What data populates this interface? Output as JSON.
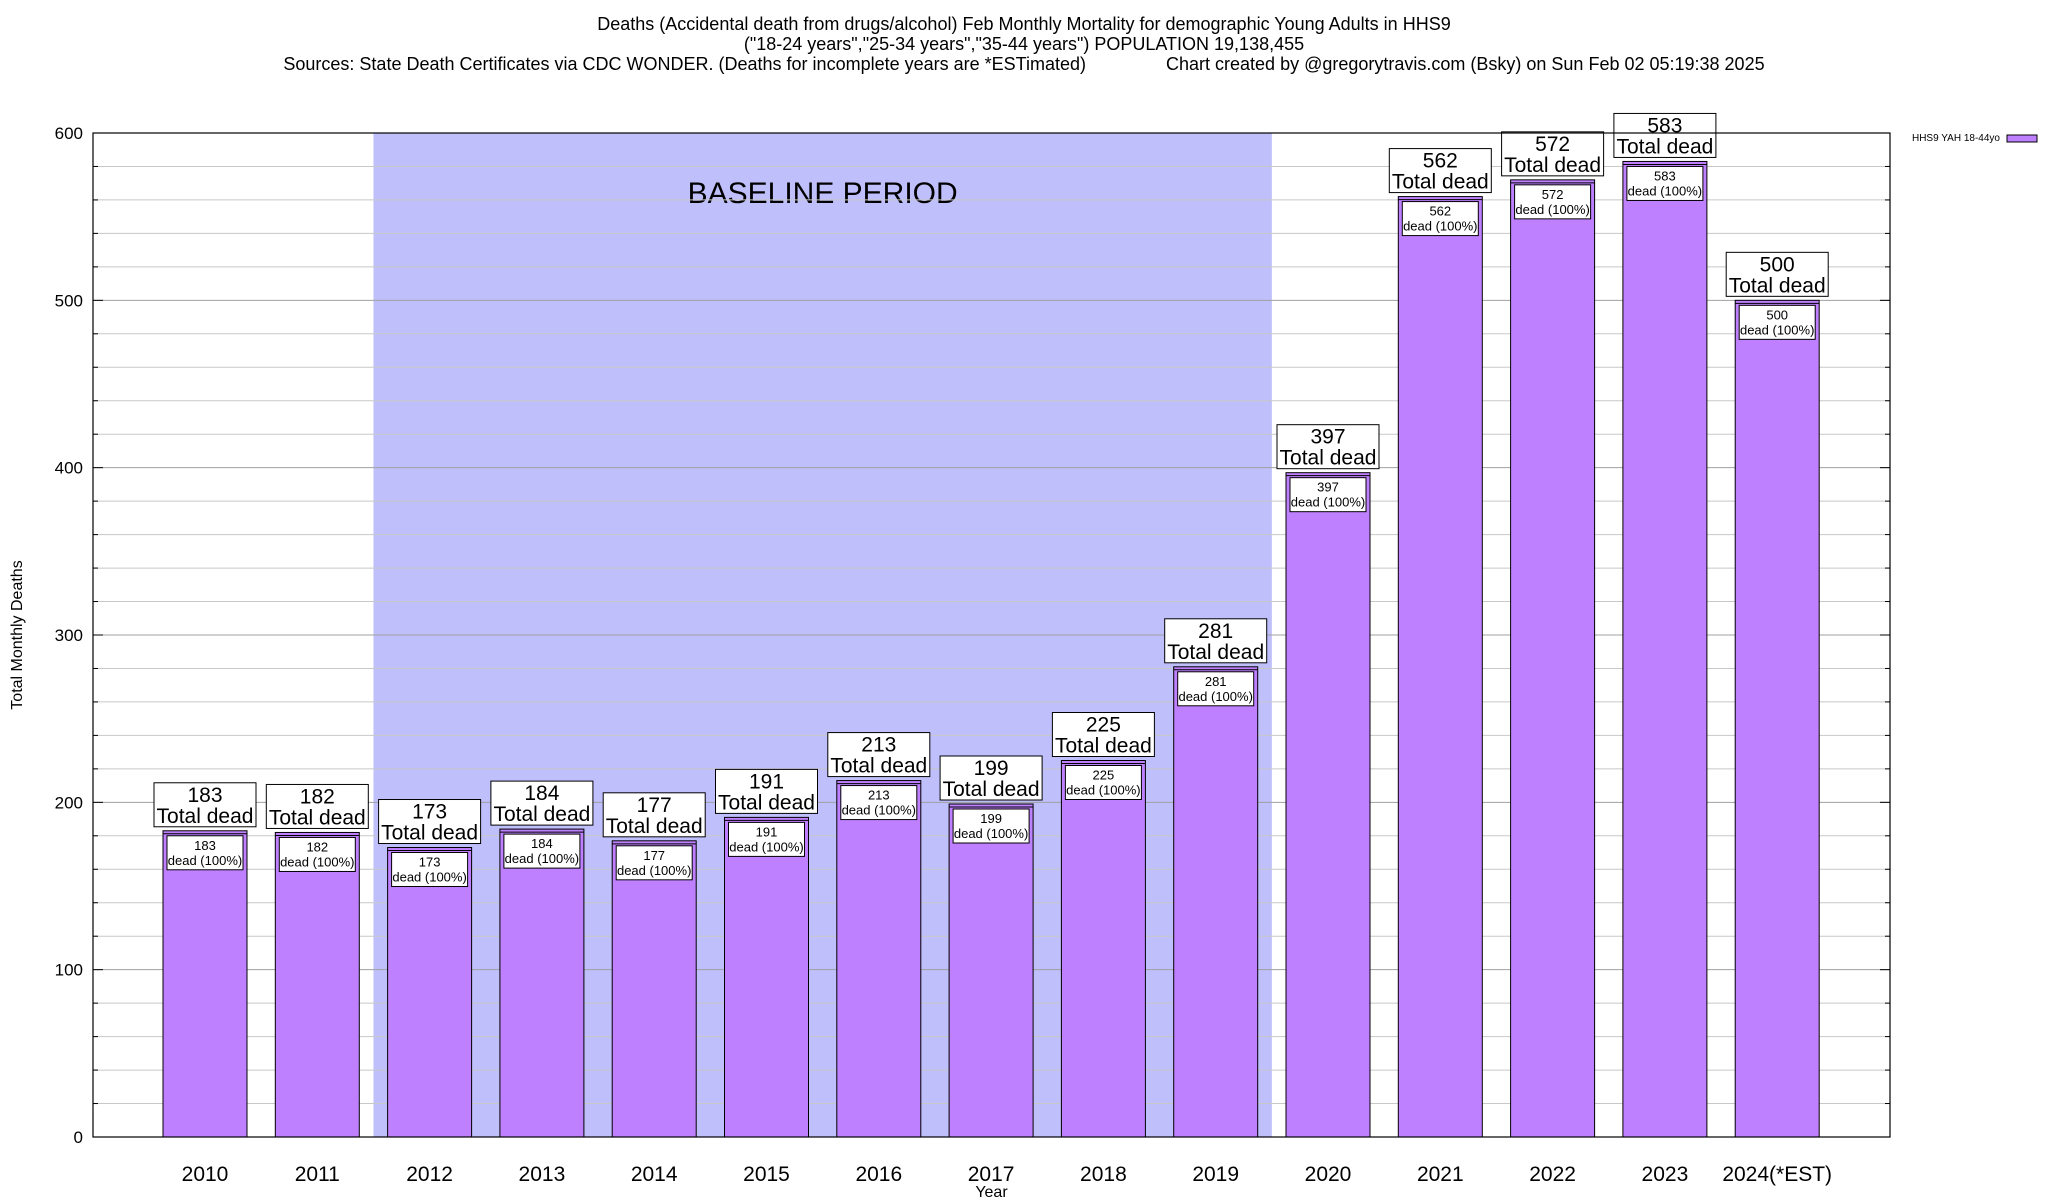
{
  "header": {
    "title_line1": "Deaths (Accidental death from drugs/alcohol) Feb Monthly Mortality for demographic Young Adults in HHS9",
    "title_line2": "(\"18-24 years\",\"25-34 years\",\"35-44 years\") POPULATION 19,138,455",
    "title_line3": "Sources: State Death Certificates via CDC WONDER. (Deaths for incomplete years are *ESTimated)                Chart created by @gregorytravis.com (Bsky) on Sun Feb 02 05:19:38 2025"
  },
  "chart_data": {
    "type": "bar",
    "categories": [
      "2010",
      "2011",
      "2012",
      "2013",
      "2014",
      "2015",
      "2016",
      "2017",
      "2018",
      "2019",
      "2020",
      "2021",
      "2022",
      "2023",
      "2024(*EST)"
    ],
    "series": [
      {
        "name": "HHS9 YAH 18-44yo",
        "values": [
          183,
          182,
          173,
          184,
          177,
          191,
          213,
          199,
          225,
          281,
          397,
          562,
          572,
          583,
          500
        ]
      }
    ],
    "xlabel": "Year",
    "ylabel": "Total Monthly Deaths",
    "ylim": [
      0,
      600
    ],
    "yticks": [
      0,
      100,
      200,
      300,
      400,
      500,
      600
    ],
    "grid": true,
    "legend": "top-right",
    "total_label_suffix": "Total dead",
    "inner_label_suffix": "dead (100%)",
    "baseline": {
      "label": "BASELINE PERIOD",
      "from": "2012",
      "to": "2019",
      "color": "#bfbffc"
    },
    "colors": {
      "bar": "#bf80ff",
      "bar_top": "#9f5fdf",
      "grid": "#b0b0b0"
    }
  }
}
